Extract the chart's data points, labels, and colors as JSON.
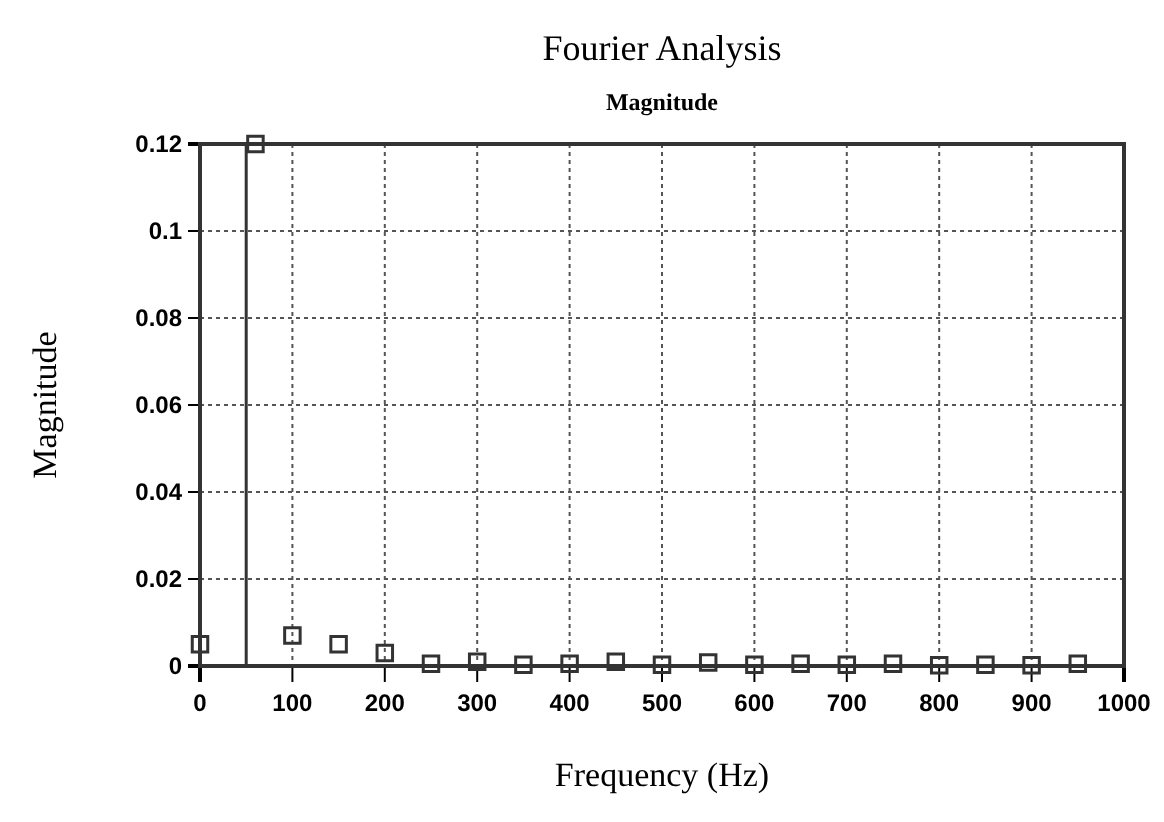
{
  "chart_data": {
    "type": "scatter",
    "title": "Fourier Analysis",
    "subtitle": "Magnitude",
    "xlabel": "Frequency (Hz)",
    "ylabel": "Magnitude",
    "x": [
      0,
      60,
      100,
      150,
      200,
      250,
      300,
      350,
      400,
      450,
      500,
      550,
      600,
      650,
      700,
      750,
      800,
      850,
      900,
      950
    ],
    "values": [
      0.005,
      0.12,
      0.007,
      0.005,
      0.003,
      0.0005,
      0.001,
      0.0003,
      0.0005,
      0.001,
      0.0003,
      0.0008,
      0.0003,
      0.0005,
      0.0003,
      0.0005,
      0.0002,
      0.0003,
      0.0002,
      0.0005
    ],
    "color": "#333333",
    "marker": "square",
    "xlim": [
      0,
      1000
    ],
    "xticks": [
      0,
      100,
      200,
      300,
      400,
      500,
      600,
      700,
      800,
      900,
      1000
    ],
    "ylim": [
      0,
      0.12
    ],
    "yticks": [
      0,
      0.02,
      0.04,
      0.06,
      0.08,
      0.1,
      0.12
    ],
    "ref_lines": [
      {
        "axis": "x",
        "value": 50,
        "color": "#333333"
      }
    ],
    "grid": true
  }
}
